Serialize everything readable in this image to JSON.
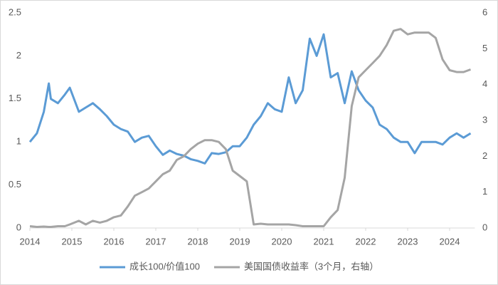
{
  "chart_data": {
    "type": "line",
    "x": [
      2014,
      2014.167,
      2014.333,
      2014.45,
      2014.5,
      2014.667,
      2014.833,
      2014.95,
      2015.167,
      2015.333,
      2015.5,
      2015.667,
      2015.833,
      2016,
      2016.167,
      2016.333,
      2016.5,
      2016.667,
      2016.833,
      2017,
      2017.167,
      2017.333,
      2017.5,
      2017.667,
      2017.833,
      2018,
      2018.167,
      2018.333,
      2018.5,
      2018.667,
      2018.833,
      2019,
      2019.167,
      2019.333,
      2019.5,
      2019.667,
      2019.833,
      2020,
      2020.167,
      2020.333,
      2020.5,
      2020.667,
      2020.833,
      2021,
      2021.167,
      2021.333,
      2021.5,
      2021.667,
      2021.833,
      2022,
      2022.167,
      2022.333,
      2022.5,
      2022.667,
      2022.833,
      2023,
      2023.167,
      2023.333,
      2023.5,
      2023.667,
      2023.833,
      2024,
      2024.167,
      2024.333,
      2024.5
    ],
    "series": [
      {
        "name": "成长100/价值100",
        "color": "#5b9bd5",
        "axis": "y",
        "values": [
          1.0,
          1.1,
          1.35,
          1.68,
          1.5,
          1.45,
          1.55,
          1.63,
          1.35,
          1.4,
          1.45,
          1.38,
          1.3,
          1.2,
          1.15,
          1.12,
          1.0,
          1.05,
          1.07,
          0.95,
          0.85,
          0.9,
          0.86,
          0.84,
          0.8,
          0.78,
          0.75,
          0.87,
          0.86,
          0.88,
          0.95,
          0.95,
          1.05,
          1.2,
          1.3,
          1.45,
          1.38,
          1.35,
          1.75,
          1.45,
          1.6,
          2.2,
          2.0,
          2.25,
          1.75,
          1.8,
          1.45,
          1.82,
          1.6,
          1.48,
          1.4,
          1.2,
          1.15,
          1.05,
          1.0,
          1.0,
          0.87,
          1.0,
          1.0,
          1.0,
          0.97,
          1.05,
          1.1,
          1.05,
          1.1
        ]
      },
      {
        "name": "美国国债收益率（3个月，右轴）",
        "color": "#a5a5a5",
        "axis": "y2",
        "values": [
          0.05,
          0.03,
          0.04,
          0.03,
          0.03,
          0.05,
          0.05,
          0.1,
          0.2,
          0.1,
          0.2,
          0.15,
          0.2,
          0.3,
          0.35,
          0.6,
          0.9,
          1.0,
          1.1,
          1.3,
          1.5,
          1.6,
          1.9,
          2.0,
          2.2,
          2.35,
          2.45,
          2.45,
          2.4,
          2.2,
          1.6,
          1.45,
          1.3,
          0.1,
          0.12,
          0.1,
          0.1,
          0.1,
          0.1,
          0.08,
          0.05,
          0.05,
          0.05,
          0.05,
          0.3,
          0.5,
          1.4,
          3.4,
          4.2,
          4.4,
          4.6,
          4.8,
          5.1,
          5.5,
          5.55,
          5.4,
          5.45,
          5.45,
          5.45,
          5.3,
          4.7,
          4.4,
          4.35,
          4.35,
          4.42
        ]
      }
    ],
    "xlim": [
      2014,
      2024.6
    ],
    "xticks": [
      2014,
      2015,
      2016,
      2017,
      2018,
      2019,
      2020,
      2021,
      2022,
      2023,
      2024
    ],
    "ylim": [
      0,
      2.5
    ],
    "yticks": [
      0,
      0.5,
      1,
      1.5,
      2,
      2.5
    ],
    "y2lim": [
      0,
      6
    ],
    "y2ticks": [
      0,
      1,
      2,
      3,
      4,
      5,
      6
    ],
    "legend": "bottom"
  }
}
